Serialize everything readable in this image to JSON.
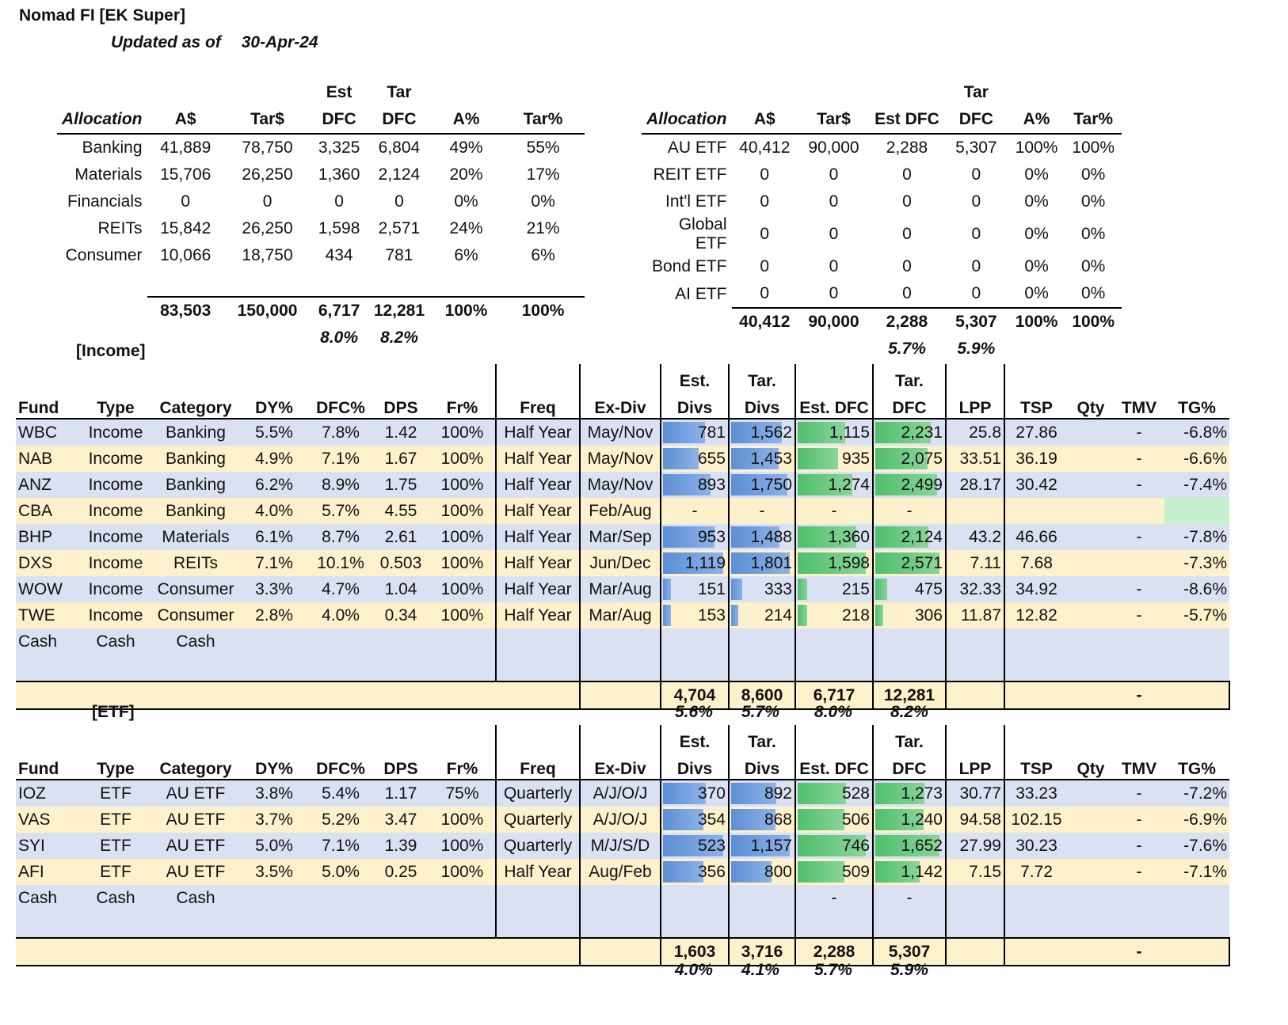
{
  "title": "Nomad FI [EK Super]",
  "updated_label": "Updated as of",
  "updated_date": "30-Apr-24",
  "alloc_left": {
    "header_top": [
      "",
      "",
      "",
      "Est",
      "Tar",
      "",
      ""
    ],
    "header": [
      "Allocation",
      "A$",
      "Tar$",
      "DFC",
      "DFC",
      "A%",
      "Tar%"
    ],
    "rows": [
      [
        "Banking",
        "41,889",
        "78,750",
        "3,325",
        "6,804",
        "49%",
        "55%"
      ],
      [
        "Materials",
        "15,706",
        "26,250",
        "1,360",
        "2,124",
        "20%",
        "17%"
      ],
      [
        "Financials",
        "0",
        "0",
        "0",
        "0",
        "0%",
        "0%"
      ],
      [
        "REITs",
        "15,842",
        "26,250",
        "1,598",
        "2,571",
        "24%",
        "21%"
      ],
      [
        "Consumer",
        "10,066",
        "18,750",
        "434",
        "781",
        "6%",
        "6%"
      ]
    ],
    "total": [
      "83,503",
      "150,000",
      "6,717",
      "12,281",
      "100%",
      "100%"
    ],
    "yield": [
      "8.0%",
      "8.2%"
    ]
  },
  "alloc_right": {
    "header_top": [
      "",
      "",
      "",
      "",
      "Tar",
      "",
      ""
    ],
    "header": [
      "Allocation",
      "A$",
      "Tar$",
      "Est DFC",
      "DFC",
      "A%",
      "Tar%"
    ],
    "rows": [
      [
        "AU ETF",
        "40,412",
        "90,000",
        "2,288",
        "5,307",
        "100%",
        "100%"
      ],
      [
        "REIT ETF",
        "0",
        "0",
        "0",
        "0",
        "0%",
        "0%"
      ],
      [
        "Int'l ETF",
        "0",
        "0",
        "0",
        "0",
        "0%",
        "0%"
      ],
      [
        "Global ETF",
        "0",
        "0",
        "0",
        "0",
        "0%",
        "0%"
      ],
      [
        "Bond ETF",
        "0",
        "0",
        "0",
        "0",
        "0%",
        "0%"
      ],
      [
        "AI ETF",
        "0",
        "0",
        "0",
        "0",
        "0%",
        "0%"
      ]
    ],
    "total": [
      "40,412",
      "90,000",
      "2,288",
      "5,307",
      "100%",
      "100%"
    ],
    "yield": [
      "5.7%",
      "5.9%"
    ]
  },
  "income": {
    "label": "[Income]",
    "header_top": [
      "Est.",
      "Tar.",
      "Tar."
    ],
    "header": [
      "Fund",
      "Type",
      "Category",
      "DY%",
      "DFC%",
      "DPS",
      "Fr%",
      "Freq",
      "Ex-Div",
      "Divs",
      "Divs",
      "Est. DFC",
      "DFC",
      "LPP",
      "TSP",
      "Qty",
      "TMV",
      "TG%"
    ],
    "rows": [
      {
        "fund": "WBC",
        "type": "Income",
        "category": "Banking",
        "dy": "5.5%",
        "dfc": "7.8%",
        "dps": "1.42",
        "fr": "100%",
        "freq": "Half Year",
        "exdiv": "May/Nov",
        "est_divs": "781",
        "tar_divs": "1,562",
        "est_dfc": "1,115",
        "tar_dfc": "2,231",
        "lpp": "25.8",
        "tsp": "27.86",
        "qty": "",
        "tmv": "-",
        "tg": "-6.8%"
      },
      {
        "fund": "NAB",
        "type": "Income",
        "category": "Banking",
        "dy": "4.9%",
        "dfc": "7.1%",
        "dps": "1.67",
        "fr": "100%",
        "freq": "Half Year",
        "exdiv": "May/Nov",
        "est_divs": "655",
        "tar_divs": "1,453",
        "est_dfc": "935",
        "tar_dfc": "2,075",
        "lpp": "33.51",
        "tsp": "36.19",
        "qty": "",
        "tmv": "-",
        "tg": "-6.6%"
      },
      {
        "fund": "ANZ",
        "type": "Income",
        "category": "Banking",
        "dy": "6.2%",
        "dfc": "8.9%",
        "dps": "1.75",
        "fr": "100%",
        "freq": "Half Year",
        "exdiv": "May/Nov",
        "est_divs": "893",
        "tar_divs": "1,750",
        "est_dfc": "1,274",
        "tar_dfc": "2,499",
        "lpp": "28.17",
        "tsp": "30.42",
        "qty": "",
        "tmv": "-",
        "tg": "-7.4%"
      },
      {
        "fund": "CBA",
        "type": "Income",
        "category": "Banking",
        "dy": "4.0%",
        "dfc": "5.7%",
        "dps": "4.55",
        "fr": "100%",
        "freq": "Half Year",
        "exdiv": "Feb/Aug",
        "est_divs": "-",
        "tar_divs": "-",
        "est_dfc": "-",
        "tar_dfc": "-",
        "lpp": "",
        "tsp": "",
        "qty": "",
        "tmv": "",
        "tg": ""
      },
      {
        "fund": "BHP",
        "type": "Income",
        "category": "Materials",
        "dy": "6.1%",
        "dfc": "8.7%",
        "dps": "2.61",
        "fr": "100%",
        "freq": "Half Year",
        "exdiv": "Mar/Sep",
        "est_divs": "953",
        "tar_divs": "1,488",
        "est_dfc": "1,360",
        "tar_dfc": "2,124",
        "lpp": "43.2",
        "tsp": "46.66",
        "qty": "",
        "tmv": "-",
        "tg": "-7.8%"
      },
      {
        "fund": "DXS",
        "type": "Income",
        "category": "REITs",
        "dy": "7.1%",
        "dfc": "10.1%",
        "dps": "0.503",
        "fr": "100%",
        "freq": "Half Year",
        "exdiv": "Jun/Dec",
        "est_divs": "1,119",
        "tar_divs": "1,801",
        "est_dfc": "1,598",
        "tar_dfc": "2,571",
        "lpp": "7.11",
        "tsp": "7.68",
        "qty": "",
        "tmv": "",
        "tg": "-7.3%"
      },
      {
        "fund": "WOW",
        "type": "Income",
        "category": "Consumer",
        "dy": "3.3%",
        "dfc": "4.7%",
        "dps": "1.04",
        "fr": "100%",
        "freq": "Half Year",
        "exdiv": "Mar/Aug",
        "est_divs": "151",
        "tar_divs": "333",
        "est_dfc": "215",
        "tar_dfc": "475",
        "lpp": "32.33",
        "tsp": "34.92",
        "qty": "",
        "tmv": "-",
        "tg": "-8.6%"
      },
      {
        "fund": "TWE",
        "type": "Income",
        "category": "Consumer",
        "dy": "2.8%",
        "dfc": "4.0%",
        "dps": "0.34",
        "fr": "100%",
        "freq": "Half Year",
        "exdiv": "Mar/Aug",
        "est_divs": "153",
        "tar_divs": "214",
        "est_dfc": "218",
        "tar_dfc": "306",
        "lpp": "11.87",
        "tsp": "12.82",
        "qty": "",
        "tmv": "-",
        "tg": "-5.7%"
      },
      {
        "fund": "Cash",
        "type": "Cash",
        "category": "Cash",
        "dy": "",
        "dfc": "",
        "dps": "",
        "fr": "",
        "freq": "",
        "exdiv": "",
        "est_divs": "",
        "tar_divs": "",
        "est_dfc": "",
        "tar_dfc": "",
        "lpp": "",
        "tsp": "",
        "qty": "",
        "tmv": "",
        "tg": ""
      }
    ],
    "total": {
      "est_divs": "4,704",
      "tar_divs": "8,600",
      "est_dfc": "6,717",
      "tar_dfc": "12,281",
      "tmv": "-"
    },
    "yield": [
      "5.6%",
      "5.7%",
      "8.0%",
      "8.2%"
    ]
  },
  "etf": {
    "label": "[ETF]",
    "header_top": [
      "Est.",
      "Tar.",
      "Tar."
    ],
    "header": [
      "Fund",
      "Type",
      "Category",
      "DY%",
      "DFC%",
      "DPS",
      "Fr%",
      "Freq",
      "Ex-Div",
      "Divs",
      "Divs",
      "Est. DFC",
      "DFC",
      "LPP",
      "TSP",
      "Qty",
      "TMV",
      "TG%"
    ],
    "rows": [
      {
        "fund": "IOZ",
        "type": "ETF",
        "category": "AU ETF",
        "dy": "3.8%",
        "dfc": "5.4%",
        "dps": "1.17",
        "fr": "75%",
        "freq": "Quarterly",
        "exdiv": "A/J/O/J",
        "est_divs": "370",
        "tar_divs": "892",
        "est_dfc": "528",
        "tar_dfc": "1,273",
        "lpp": "30.77",
        "tsp": "33.23",
        "qty": "",
        "tmv": "-",
        "tg": "-7.2%"
      },
      {
        "fund": "VAS",
        "type": "ETF",
        "category": "AU ETF",
        "dy": "3.7%",
        "dfc": "5.2%",
        "dps": "3.47",
        "fr": "100%",
        "freq": "Quarterly",
        "exdiv": "A/J/O/J",
        "est_divs": "354",
        "tar_divs": "868",
        "est_dfc": "506",
        "tar_dfc": "1,240",
        "lpp": "94.58",
        "tsp": "102.15",
        "qty": "",
        "tmv": "-",
        "tg": "-6.9%"
      },
      {
        "fund": "SYI",
        "type": "ETF",
        "category": "AU ETF",
        "dy": "5.0%",
        "dfc": "7.1%",
        "dps": "1.39",
        "fr": "100%",
        "freq": "Quarterly",
        "exdiv": "M/J/S/D",
        "est_divs": "523",
        "tar_divs": "1,157",
        "est_dfc": "746",
        "tar_dfc": "1,652",
        "lpp": "27.99",
        "tsp": "30.23",
        "qty": "",
        "tmv": "-",
        "tg": "-7.6%"
      },
      {
        "fund": "AFI",
        "type": "ETF",
        "category": "AU ETF",
        "dy": "3.5%",
        "dfc": "5.0%",
        "dps": "0.25",
        "fr": "100%",
        "freq": "Half Year",
        "exdiv": "Aug/Feb",
        "est_divs": "356",
        "tar_divs": "800",
        "est_dfc": "509",
        "tar_dfc": "1,142",
        "lpp": "7.15",
        "tsp": "7.72",
        "qty": "",
        "tmv": "-",
        "tg": "-7.1%"
      },
      {
        "fund": "Cash",
        "type": "Cash",
        "category": "Cash",
        "dy": "",
        "dfc": "",
        "dps": "",
        "fr": "",
        "freq": "",
        "exdiv": "",
        "est_divs": "",
        "tar_divs": "",
        "est_dfc": "-",
        "tar_dfc": "-",
        "lpp": "",
        "tsp": "",
        "qty": "",
        "tmv": "",
        "tg": ""
      }
    ],
    "total": {
      "est_divs": "1,603",
      "tar_divs": "3,716",
      "est_dfc": "2,288",
      "tar_dfc": "5,307",
      "tmv": "-"
    },
    "yield": [
      "4.0%",
      "4.1%",
      "5.7%",
      "5.9%"
    ]
  },
  "colors": {
    "bar_blue": "#5b8fd6",
    "bar_green": "#4fbf6a",
    "row_blue": "#d9e1f2",
    "row_tan": "#fdf1cc",
    "highlight_green": "#c6efce"
  }
}
